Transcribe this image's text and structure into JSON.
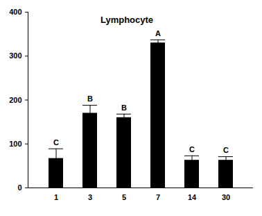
{
  "chart_data": {
    "type": "bar",
    "title": "Lymphocyte",
    "categories": [
      "1",
      "3",
      "5",
      "7",
      "14",
      "30"
    ],
    "values": [
      67,
      170,
      160,
      330,
      63,
      63
    ],
    "errors": [
      22,
      18,
      8,
      7,
      10,
      8
    ],
    "annotations": [
      "C",
      "B",
      "B",
      "A",
      "C",
      "C"
    ],
    "color": "#000000",
    "ylim": [
      0,
      400
    ],
    "yticks": [
      0,
      100,
      200,
      300,
      400
    ],
    "grid": false
  }
}
